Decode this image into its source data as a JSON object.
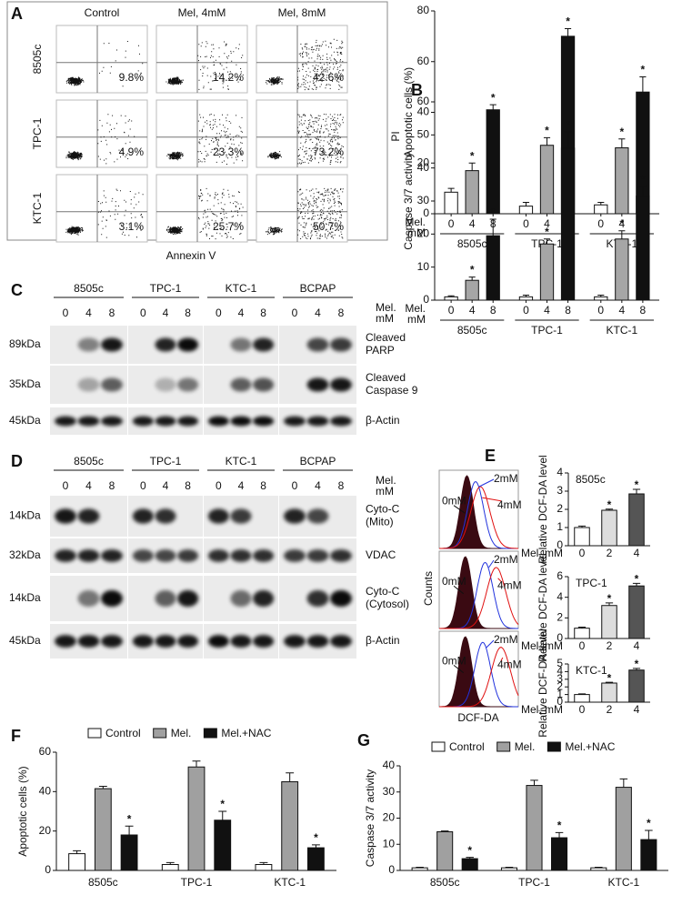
{
  "panel_labels": [
    "A",
    "B",
    "C",
    "D",
    "E",
    "F",
    "G"
  ],
  "flow_cytometry": {
    "columns": [
      "Control",
      "Mel, 4mM",
      "Mel, 8mM"
    ],
    "rows": [
      {
        "name": "8505c",
        "percentages": [
          "9.8%",
          "14.2%",
          "42.6%"
        ]
      },
      {
        "name": "TPC-1",
        "percentages": [
          "4.9%",
          "23.3%",
          "73.2%"
        ]
      },
      {
        "name": "KTC-1",
        "percentages": [
          "3.1%",
          "25.7%",
          "50.7%"
        ]
      }
    ],
    "x_label": "Annexin V",
    "y_label": "PI"
  },
  "western_blots": [
    {
      "groups": [
        "8505c",
        "TPC-1",
        "KTC-1",
        "BCPAP"
      ],
      "lanes": [
        "0",
        "4",
        "8"
      ],
      "treatment": [
        "Mel.",
        "mM"
      ],
      "rows": [
        {
          "size": "89kDa",
          "label": [
            "Cleaved",
            "PARP"
          ]
        },
        {
          "size": "35kDa",
          "label": [
            "Cleaved",
            "Caspase 9"
          ]
        },
        {
          "size": "45kDa",
          "label": [
            "β-Actin"
          ]
        }
      ]
    },
    {
      "groups": [
        "8505c",
        "TPC-1",
        "KTC-1",
        "BCPAP"
      ],
      "lanes": [
        "0",
        "4",
        "8"
      ],
      "treatment": [
        "Mel.",
        "mM"
      ],
      "rows": [
        {
          "size": "14kDa",
          "label": [
            "Cyto-C",
            "(Mito)"
          ]
        },
        {
          "size": "32kDa",
          "label": [
            "VDAC"
          ]
        },
        {
          "size": "14kDa",
          "label": [
            "Cyto-C",
            "(Cytosol)"
          ]
        },
        {
          "size": "45kDa",
          "label": [
            "β-Actin"
          ]
        }
      ]
    }
  ],
  "dcf_histograms": {
    "y_label": "Counts",
    "x_label": "DCF-DA",
    "curve_labels": [
      "0mM",
      "2mM",
      "4mM"
    ]
  },
  "chart_data": [
    {
      "type": "bar",
      "y_label": "Apoptotic cells (%)",
      "x_label": [
        "Mel.",
        "mM"
      ],
      "categories": [
        "8505c",
        "TPC-1",
        "KTC-1"
      ],
      "series": [
        {
          "name": "0",
          "color": "#ffffff",
          "values": [
            8.5,
            3,
            3.5
          ],
          "errors": [
            1.5,
            1.5,
            1
          ],
          "significant": [
            false,
            false,
            false
          ]
        },
        {
          "name": "4",
          "color": "#a6a6a6",
          "values": [
            17,
            27,
            26
          ],
          "errors": [
            3,
            3,
            3.5
          ],
          "significant": [
            true,
            true,
            true
          ]
        },
        {
          "name": "8",
          "color": "#111111",
          "values": [
            41,
            70,
            48
          ],
          "errors": [
            2,
            3,
            6
          ],
          "significant": [
            true,
            true,
            true
          ]
        }
      ],
      "ylim": [
        0,
        80
      ],
      "yticks": [
        0,
        20,
        40,
        60,
        80
      ],
      "star": "*"
    },
    {
      "type": "bar",
      "y_label": "Caspase 3/7 activity",
      "x_label": [
        "Mel.",
        "mM"
      ],
      "categories": [
        "8505c",
        "TPC-1",
        "KTC-1"
      ],
      "series": [
        {
          "name": "0",
          "color": "#ffffff",
          "values": [
            1,
            1,
            1
          ],
          "errors": [
            0.3,
            0.5,
            0.5
          ],
          "significant": [
            false,
            false,
            false
          ]
        },
        {
          "name": "4",
          "color": "#a6a6a6",
          "values": [
            6,
            17,
            18.5
          ],
          "errors": [
            1,
            1.5,
            2.5
          ],
          "significant": [
            true,
            true,
            true
          ]
        },
        {
          "name": "8",
          "color": "#111111",
          "values": [
            19.5,
            46,
            31.5
          ],
          "errors": [
            5,
            5,
            3
          ],
          "significant": [
            true,
            true,
            true
          ]
        }
      ],
      "ylim": [
        0,
        60
      ],
      "yticks": [
        0,
        10,
        20,
        30,
        40,
        50,
        60
      ],
      "star": "*"
    },
    {
      "type": "bar",
      "title": "8505c",
      "y_label": "Relative DCF-DA level",
      "x_label": "Mel. mM",
      "categories": [
        "0",
        "2",
        "4"
      ],
      "values": [
        1,
        1.95,
        2.85
      ],
      "errors": [
        0.08,
        0.06,
        0.25
      ],
      "significant": [
        false,
        true,
        true
      ],
      "colors": [
        "#ffffff",
        "#dddddd",
        "#555555"
      ],
      "ylim": [
        0,
        4
      ],
      "yticks": [
        0,
        1,
        2,
        3,
        4
      ],
      "star": "*"
    },
    {
      "type": "bar",
      "title": "TPC-1",
      "y_label": "Relative DCF-DA level",
      "x_label": "Mel. mM",
      "categories": [
        "0",
        "2",
        "4"
      ],
      "values": [
        1,
        3.2,
        5.1
      ],
      "errors": [
        0.1,
        0.25,
        0.25
      ],
      "significant": [
        false,
        true,
        true
      ],
      "colors": [
        "#ffffff",
        "#dddddd",
        "#555555"
      ],
      "ylim": [
        0,
        6
      ],
      "yticks": [
        0,
        2,
        4,
        6
      ],
      "star": "*"
    },
    {
      "type": "bar",
      "title": "KTC-1",
      "y_label": "Relative DCF-DA level",
      "x_label": "Mel. mM",
      "categories": [
        "0",
        "2",
        "4"
      ],
      "values": [
        1,
        2.5,
        4.2
      ],
      "errors": [
        0.08,
        0.1,
        0.22
      ],
      "significant": [
        false,
        true,
        true
      ],
      "colors": [
        "#ffffff",
        "#dddddd",
        "#555555"
      ],
      "ylim": [
        0,
        5
      ],
      "yticks": [
        0,
        1,
        2,
        3,
        4,
        5
      ],
      "star": "*"
    },
    {
      "type": "bar",
      "y_label": "Apoptotic cells (%)",
      "legend": true,
      "categories": [
        "8505c",
        "TPC-1",
        "KTC-1"
      ],
      "series": [
        {
          "name": "Control",
          "color": "#ffffff",
          "values": [
            8.5,
            3,
            3
          ],
          "errors": [
            1.5,
            1,
            1
          ],
          "significant": [
            false,
            false,
            false
          ]
        },
        {
          "name": "Mel.",
          "color": "#a0a0a0",
          "values": [
            41.5,
            52.5,
            45
          ],
          "errors": [
            1.2,
            3,
            4.5
          ],
          "significant": [
            false,
            false,
            false
          ]
        },
        {
          "name": "Mel.+NAC",
          "color": "#111111",
          "values": [
            18,
            25.5,
            11.5
          ],
          "errors": [
            4.5,
            4.5,
            1.5
          ],
          "significant": [
            true,
            true,
            true
          ]
        }
      ],
      "ylim": [
        0,
        60
      ],
      "yticks": [
        0,
        20,
        40,
        60
      ],
      "star": "*"
    },
    {
      "type": "bar",
      "y_label": "Caspase 3/7 activity",
      "legend": true,
      "categories": [
        "8505c",
        "TPC-1",
        "KTC-1"
      ],
      "series": [
        {
          "name": "Control",
          "color": "#ffffff",
          "values": [
            1,
            1,
            1
          ],
          "errors": [
            0.2,
            0.2,
            0.2
          ],
          "significant": [
            false,
            false,
            false
          ]
        },
        {
          "name": "Mel.",
          "color": "#a0a0a0",
          "values": [
            14.8,
            32.5,
            31.8
          ],
          "errors": [
            0.3,
            2,
            3.2
          ],
          "significant": [
            false,
            false,
            false
          ]
        },
        {
          "name": "Mel.+NAC",
          "color": "#111111",
          "values": [
            4.5,
            12.5,
            11.8
          ],
          "errors": [
            0.5,
            2,
            3.5
          ],
          "significant": [
            true,
            true,
            true
          ]
        }
      ],
      "ylim": [
        0,
        40
      ],
      "yticks": [
        0,
        10,
        20,
        30,
        40
      ],
      "star": "*"
    }
  ]
}
